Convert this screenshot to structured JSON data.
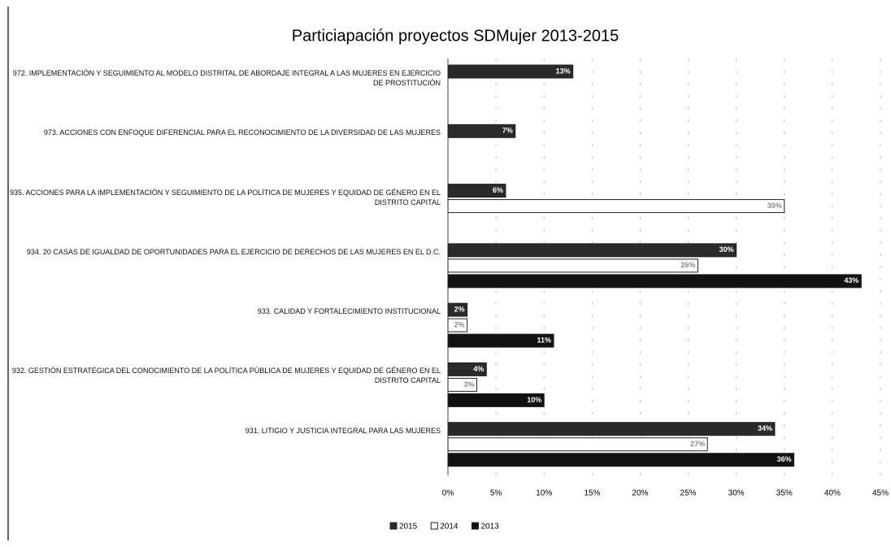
{
  "chart_data": {
    "type": "hbar",
    "title": "Particiapación proyectos SDMujer 2013-2015",
    "categories": [
      "972. IMPLEMENTACIÓN Y SEGUIMIENTO AL MODELO DISTRITAL DE ABORDAJE INTEGRAL A LAS MUJERES EN EJERCICIO DE PROSTITUCIÓN",
      "973. ACCIONES CON ENFOQUE DIFERENCIAL PARA EL RECONOCIMIENTO DE LA DIVERSIDAD DE LAS MUJERES",
      "935. ACCIONES PARA LA IMPLEMENTACIÓN Y SEGUIMIENTO DE LA POLÍTICA DE MUJERES Y EQUIDAD DE GÉNERO EN EL DISTRITO CAPITAL",
      "934. 20 CASAS DE IGUALDAD DE OPORTUNIDADES PARA EL EJERCICIO DE DERECHOS DE LAS MUJERES EN EL D.C.",
      "933. CALIDAD Y FORTALECIMIENTO INSTITUCIONAL",
      "932. GESTIÓN ESTRATÉGICA DEL CONOCIMIENTO DE LA POLÍTICA PÚBLICA DE MUJERES Y EQUIDAD DE GÉNERO EN EL DISTRITO CAPITAL",
      "931. LITIGIO Y JUSTICIA INTEGRAL PARA LAS MUJERES"
    ],
    "series": [
      {
        "name": "2015",
        "color": "#2a2a2a",
        "values": [
          13,
          7,
          6,
          30,
          2,
          4,
          34
        ],
        "value_labels": [
          "13%",
          "7%",
          "6%",
          "30%",
          "2%",
          "4%",
          "34%"
        ]
      },
      {
        "name": "2014",
        "color": "#ffffff",
        "values": [
          null,
          null,
          35,
          26,
          2,
          3,
          27
        ],
        "value_labels": [
          null,
          null,
          "35%",
          "26%",
          "2%",
          "3%",
          "27%"
        ]
      },
      {
        "name": "2013",
        "color": "#111111",
        "values": [
          null,
          null,
          null,
          43,
          11,
          10,
          36
        ],
        "value_labels": [
          null,
          null,
          null,
          "43%",
          "11%",
          "10%",
          "36%"
        ]
      }
    ],
    "xlim": [
      0,
      45
    ],
    "xticks": [
      {
        "value": 0,
        "label": "0%"
      },
      {
        "value": 5,
        "label": "5%"
      },
      {
        "value": 10,
        "label": "10%"
      },
      {
        "value": 15,
        "label": "15%"
      },
      {
        "value": 20,
        "label": "20%"
      },
      {
        "value": 25,
        "label": "25%"
      },
      {
        "value": 30,
        "label": "30%"
      },
      {
        "value": 35,
        "label": "35%"
      },
      {
        "value": 40,
        "label": "40%"
      },
      {
        "value": 45,
        "label": "45%"
      }
    ],
    "grid": true
  }
}
